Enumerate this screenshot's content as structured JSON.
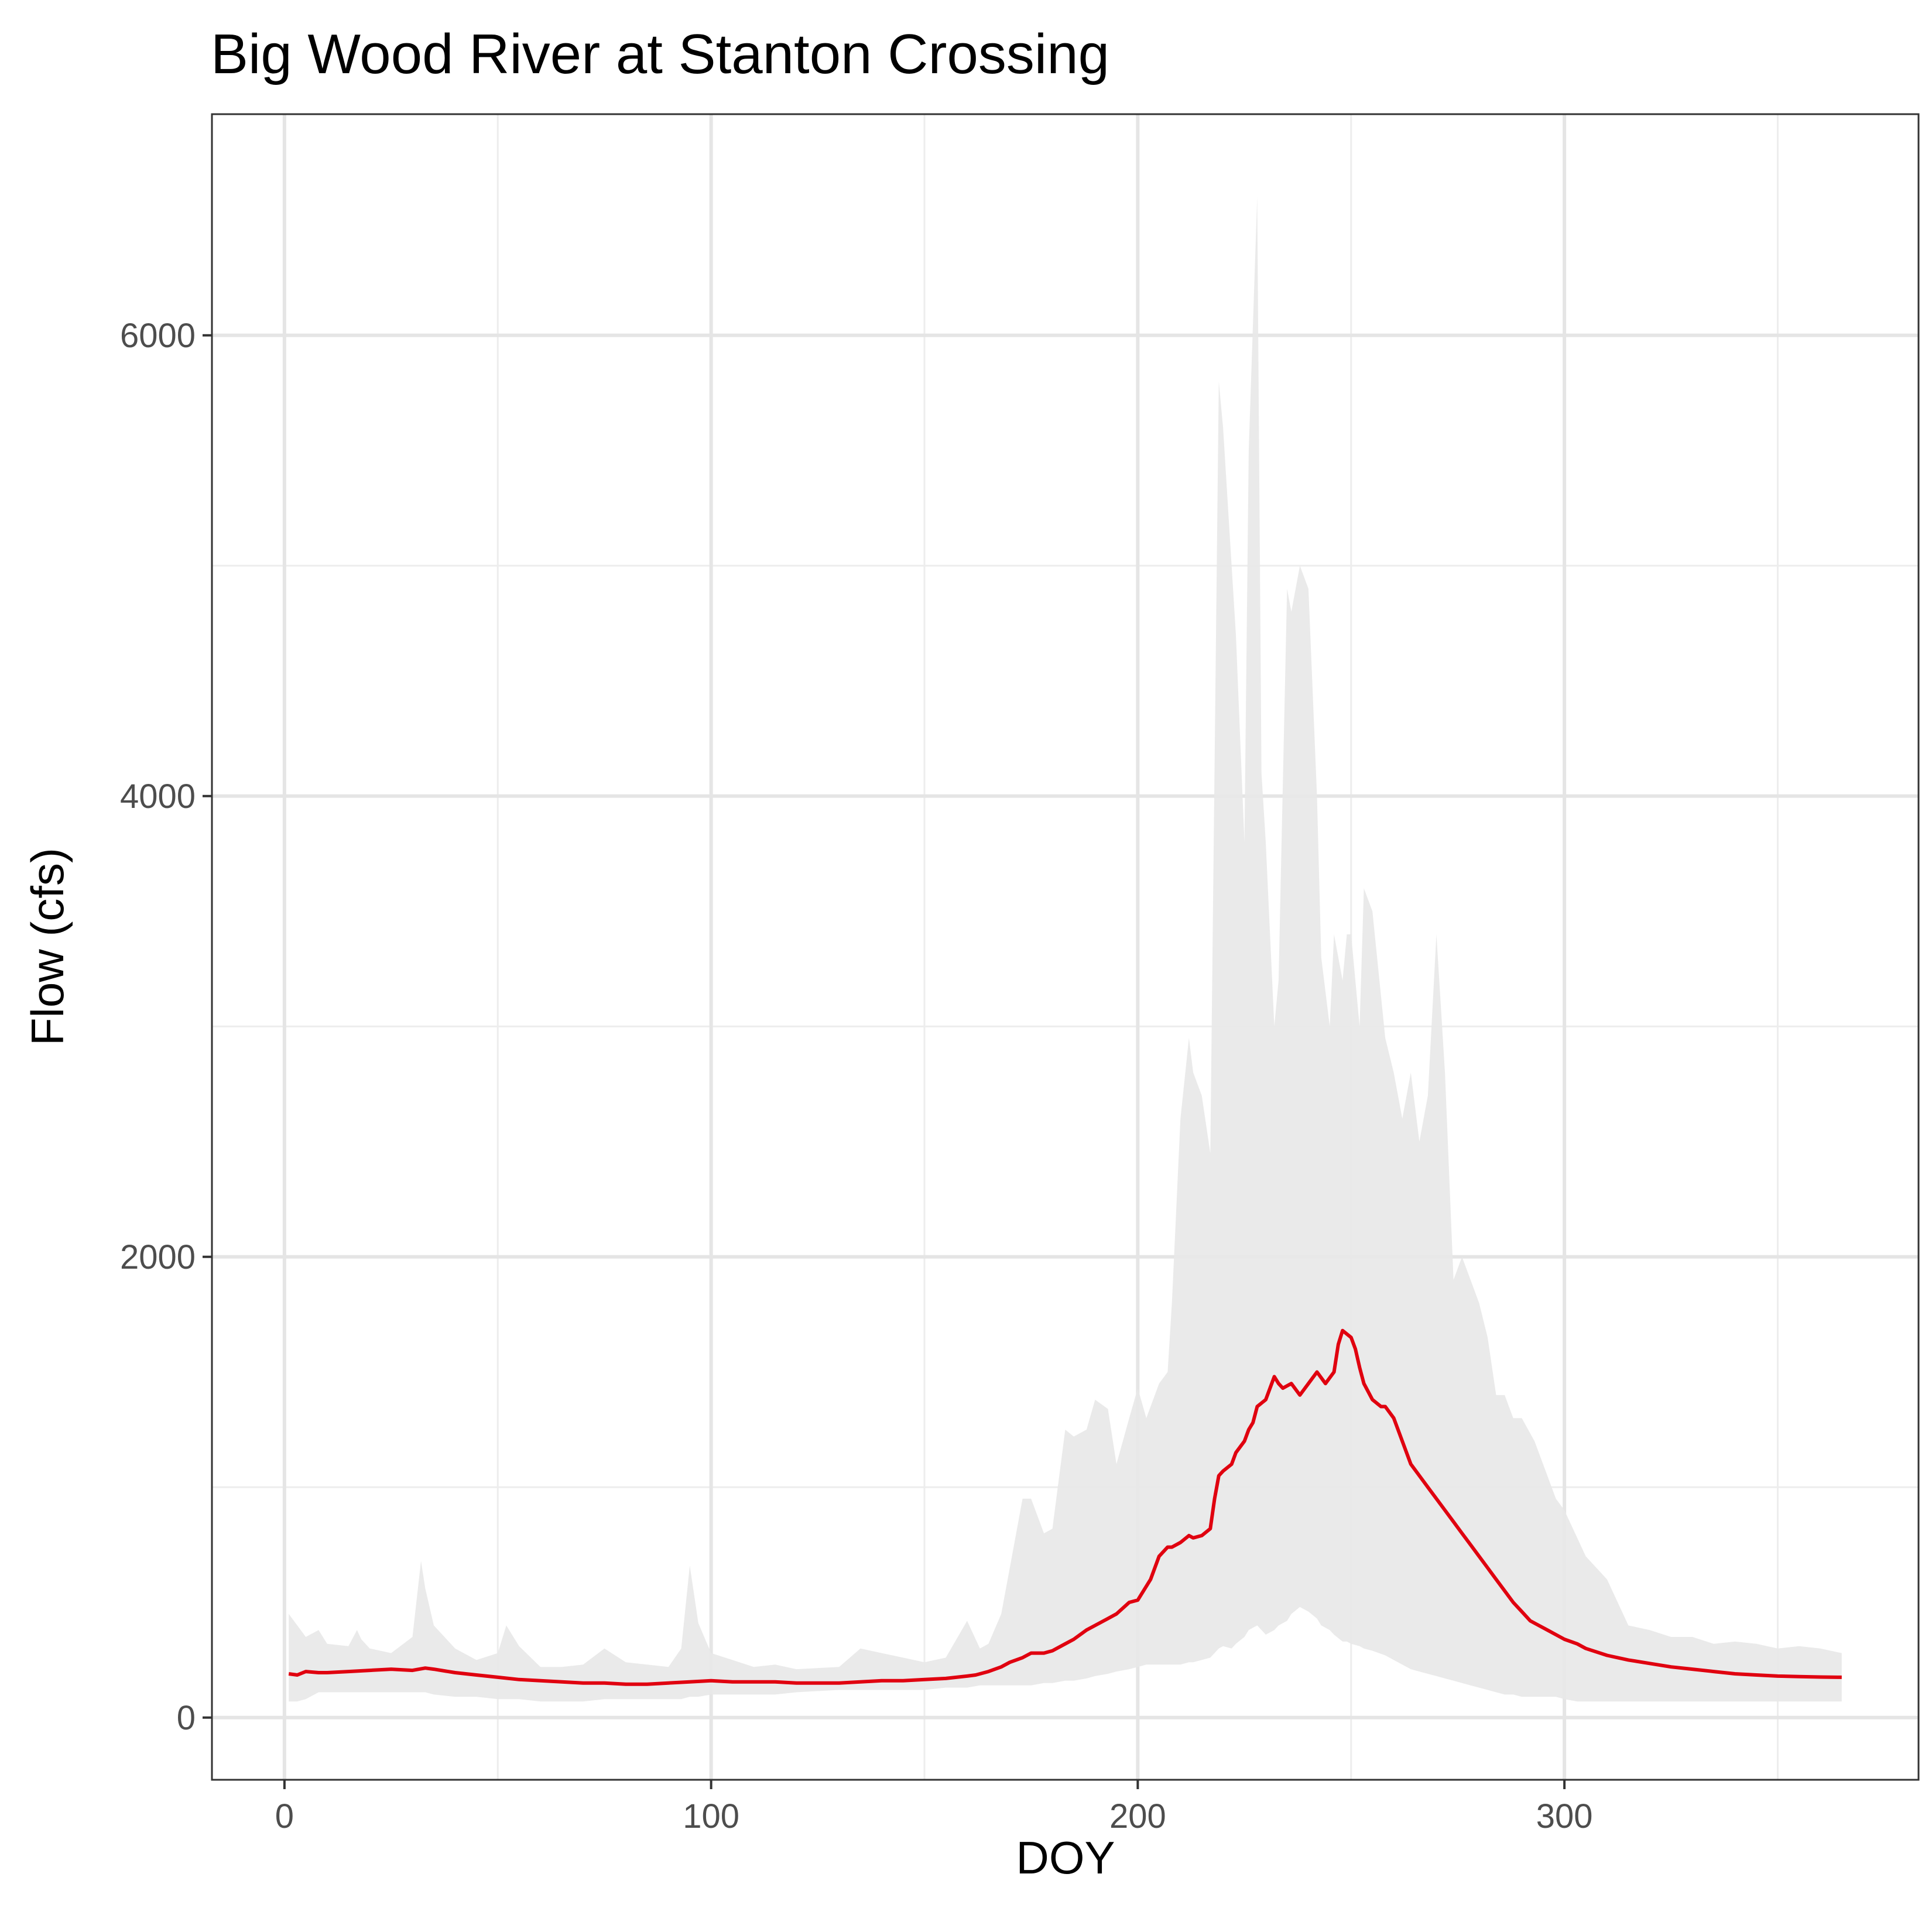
{
  "chart_data": {
    "type": "area",
    "title": "Big Wood River at Stanton Crossing",
    "xlabel": "DOY",
    "ylabel": "Flow (cfs)",
    "xlim": [
      -17,
      383
    ],
    "ylim": [
      -270,
      6960
    ],
    "x_ticks": [
      0,
      100,
      200,
      300
    ],
    "y_ticks": [
      0,
      2000,
      4000,
      6000
    ],
    "x_tick_labels": [
      "0",
      "100",
      "200",
      "300"
    ],
    "y_tick_labels": [
      "0",
      "2000",
      "4000",
      "6000"
    ],
    "grid": true,
    "colors": {
      "ribbon": "#e8e8e8",
      "line": "#e0000f",
      "panel_border": "#333333",
      "grid": "#e5e5e5"
    },
    "series": [
      {
        "kind": "ribbon",
        "x": [
          1,
          3,
          5,
          8,
          10,
          15,
          17,
          18,
          20,
          25,
          30,
          32,
          33,
          35,
          40,
          45,
          50,
          52,
          55,
          60,
          65,
          70,
          75,
          80,
          85,
          90,
          93,
          95,
          97,
          100,
          105,
          110,
          115,
          120,
          130,
          135,
          140,
          145,
          150,
          155,
          160,
          163,
          165,
          168,
          170,
          173,
          175,
          178,
          180,
          183,
          185,
          188,
          190,
          193,
          195,
          198,
          200,
          202,
          205,
          207,
          208,
          210,
          212,
          213,
          215,
          217,
          219,
          220,
          222,
          223,
          225,
          226,
          228,
          229,
          230,
          232,
          233,
          235,
          236,
          238,
          240,
          242,
          243,
          245,
          246,
          248,
          249,
          250,
          252,
          253,
          255,
          258,
          260,
          262,
          264,
          266,
          268,
          270,
          272,
          274,
          276,
          278,
          280,
          282,
          284,
          286,
          288,
          290,
          293,
          295,
          298,
          300,
          303,
          305,
          310,
          315,
          320,
          325,
          330,
          335,
          340,
          345,
          350,
          355,
          360,
          365
        ],
        "upper": [
          450,
          400,
          350,
          380,
          320,
          310,
          380,
          340,
          300,
          280,
          350,
          680,
          560,
          400,
          300,
          250,
          280,
          400,
          310,
          220,
          220,
          230,
          300,
          240,
          230,
          220,
          300,
          660,
          410,
          280,
          250,
          220,
          230,
          210,
          220,
          300,
          280,
          260,
          240,
          260,
          420,
          300,
          320,
          450,
          650,
          950,
          950,
          800,
          820,
          1250,
          1220,
          1250,
          1380,
          1340,
          1100,
          1300,
          1430,
          1300,
          1450,
          1500,
          1800,
          2600,
          2950,
          2800,
          2700,
          2450,
          5800,
          5600,
          5000,
          4700,
          3800,
          5500,
          6600,
          4100,
          3800,
          3000,
          3200,
          4900,
          4800,
          5000,
          4900,
          4000,
          3300,
          3000,
          3400,
          3200,
          3400,
          3400,
          3000,
          3600,
          3500,
          2950,
          2800,
          2600,
          2800,
          2500,
          2700,
          3400,
          2800,
          1900,
          2000,
          1900,
          1800,
          1650,
          1400,
          1400,
          1300,
          1300,
          1200,
          1100,
          950,
          900,
          780,
          700,
          600,
          400,
          380,
          350,
          350,
          320,
          330,
          320,
          300,
          310,
          300,
          280
        ],
        "lower": [
          70,
          70,
          80,
          110,
          110,
          110,
          110,
          110,
          110,
          110,
          110,
          110,
          110,
          100,
          90,
          90,
          80,
          80,
          80,
          70,
          70,
          70,
          80,
          80,
          80,
          80,
          80,
          90,
          90,
          100,
          100,
          100,
          100,
          110,
          120,
          120,
          120,
          120,
          120,
          130,
          130,
          140,
          140,
          140,
          140,
          140,
          140,
          150,
          150,
          160,
          160,
          170,
          180,
          190,
          200,
          210,
          220,
          230,
          230,
          230,
          230,
          230,
          240,
          240,
          250,
          260,
          300,
          310,
          300,
          320,
          350,
          380,
          400,
          380,
          360,
          380,
          400,
          420,
          450,
          480,
          460,
          430,
          400,
          380,
          360,
          330,
          330,
          320,
          310,
          300,
          290,
          270,
          250,
          230,
          210,
          200,
          190,
          180,
          170,
          160,
          150,
          140,
          130,
          120,
          110,
          100,
          100,
          90,
          90,
          90,
          90,
          80,
          70,
          70,
          70,
          70,
          70,
          70,
          70,
          70,
          70,
          70,
          70,
          70,
          70,
          70
        ]
      },
      {
        "kind": "line",
        "x": [
          1,
          3,
          5,
          8,
          10,
          15,
          20,
          25,
          30,
          33,
          35,
          40,
          45,
          50,
          55,
          60,
          65,
          70,
          75,
          80,
          85,
          90,
          95,
          100,
          105,
          110,
          115,
          120,
          125,
          130,
          135,
          140,
          145,
          150,
          155,
          160,
          162,
          165,
          168,
          170,
          173,
          175,
          178,
          180,
          183,
          185,
          188,
          190,
          193,
          195,
          198,
          200,
          203,
          205,
          207,
          208,
          210,
          212,
          213,
          215,
          217,
          218,
          219,
          220,
          222,
          223,
          225,
          226,
          227,
          228,
          230,
          232,
          233,
          234,
          235,
          236,
          238,
          240,
          242,
          244,
          246,
          247,
          248,
          250,
          251,
          252,
          253,
          255,
          257,
          258,
          260,
          262,
          264,
          266,
          268,
          270,
          272,
          274,
          276,
          278,
          280,
          282,
          284,
          286,
          288,
          290,
          292,
          294,
          296,
          298,
          300,
          303,
          305,
          310,
          315,
          320,
          325,
          330,
          335,
          340,
          345,
          350,
          355,
          360,
          364,
          365
        ],
        "y": [
          190,
          185,
          200,
          195,
          195,
          200,
          205,
          210,
          205,
          215,
          210,
          195,
          185,
          175,
          165,
          160,
          155,
          150,
          150,
          145,
          145,
          150,
          155,
          160,
          155,
          155,
          155,
          150,
          150,
          150,
          155,
          160,
          160,
          165,
          170,
          180,
          185,
          200,
          220,
          240,
          260,
          280,
          280,
          290,
          320,
          340,
          380,
          400,
          430,
          450,
          500,
          510,
          600,
          700,
          740,
          740,
          760,
          790,
          780,
          790,
          820,
          950,
          1050,
          1070,
          1100,
          1150,
          1200,
          1250,
          1280,
          1350,
          1380,
          1480,
          1450,
          1430,
          1440,
          1450,
          1400,
          1450,
          1500,
          1450,
          1500,
          1620,
          1680,
          1650,
          1600,
          1520,
          1450,
          1380,
          1350,
          1350,
          1300,
          1200,
          1100,
          1050,
          1000,
          950,
          900,
          850,
          800,
          750,
          700,
          650,
          600,
          550,
          500,
          460,
          420,
          400,
          380,
          360,
          340,
          320,
          300,
          270,
          250,
          235,
          220,
          210,
          200,
          190,
          185,
          180,
          178,
          176,
          175,
          175
        ]
      }
    ]
  }
}
